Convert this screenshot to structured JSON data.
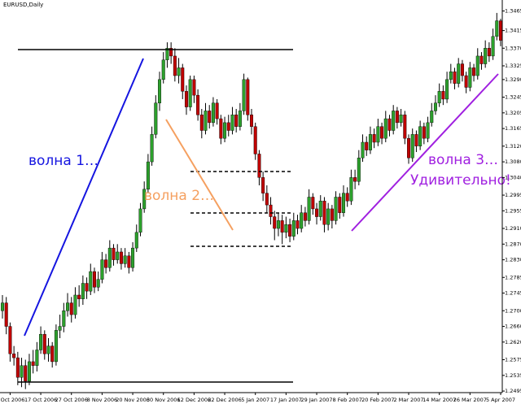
{
  "chart_data": {
    "type": "candlestick",
    "title": "EURUSD,Daily",
    "annotations": [
      "волна 1…",
      "волна 2…",
      "волна 3…",
      "Удивительно!"
    ],
    "up_color": "#2ca02c",
    "down_color": "#c00000",
    "ylim": [
      1.2491,
      1.3493
    ],
    "yticks": [
      1.3465,
      1.3415,
      {
        "value": 1.337,
        "label": "1.3370"
      },
      1.3325,
      {
        "value": 1.329,
        "label": "1.3290"
      },
      1.3245,
      1.3205,
      1.3165,
      {
        "value": 1.312,
        "label": "1.3120"
      },
      {
        "value": 1.308,
        "label": "1.3080"
      },
      {
        "value": 1.304,
        "label": "1.3040"
      },
      1.2995,
      1.2955,
      {
        "value": 1.291,
        "label": "1.2910"
      },
      {
        "value": 1.287,
        "label": "1.2870"
      },
      {
        "value": 1.283,
        "label": "1.2830"
      },
      1.2785,
      1.2745,
      {
        "value": 1.27,
        "label": "1.2700"
      },
      {
        "value": 1.266,
        "label": "1.2660"
      },
      {
        "value": 1.262,
        "label": "1.2620"
      },
      1.2575,
      1.2535,
      1.2495
    ],
    "categories": [
      null,
      null,
      "5 Oct 2006",
      null,
      null,
      null,
      null,
      null,
      null,
      null,
      "17 Oct 2006",
      null,
      null,
      null,
      null,
      null,
      null,
      null,
      "27 Oct 2006",
      null,
      null,
      null,
      null,
      null,
      null,
      null,
      "8 Nov 2006",
      null,
      null,
      null,
      null,
      null,
      null,
      null,
      "20 Nov 2006",
      null,
      null,
      null,
      null,
      null,
      null,
      null,
      "30 Nov 2006",
      null,
      null,
      null,
      null,
      null,
      null,
      null,
      "12 Dec 2006",
      null,
      null,
      null,
      null,
      null,
      null,
      null,
      "22 Dec 2006",
      null,
      null,
      null,
      null,
      null,
      null,
      null,
      "5 Jan 2007",
      null,
      null,
      null,
      null,
      null,
      null,
      null,
      "17 Jan 2007",
      null,
      null,
      null,
      null,
      null,
      null,
      null,
      "29 Jan 2007",
      null,
      null,
      null,
      null,
      null,
      null,
      null,
      "8 Feb 2007",
      null,
      null,
      null,
      null,
      null,
      null,
      null,
      "20 Feb 2007",
      null,
      null,
      null,
      null,
      null,
      null,
      null,
      "2 Mar 2007",
      null,
      null,
      null,
      null,
      null,
      null,
      null,
      "14 Mar 2007",
      null,
      null,
      null,
      null,
      null,
      null,
      null,
      "26 Mar 2007",
      null,
      null,
      null,
      null,
      null,
      null,
      null,
      "5 Apr 2007"
    ],
    "ohlc": [
      [
        1.27,
        1.274,
        1.268,
        1.272
      ],
      [
        1.272,
        1.2735,
        1.264,
        1.266
      ],
      [
        1.266,
        1.267,
        1.257,
        1.259
      ],
      [
        1.259,
        1.261,
        1.256,
        1.258
      ],
      [
        1.258,
        1.2595,
        1.251,
        1.253
      ],
      [
        1.253,
        1.258,
        1.2505,
        1.256
      ],
      [
        1.256,
        1.2575,
        1.25,
        1.252
      ],
      [
        1.252,
        1.259,
        1.251,
        1.257
      ],
      [
        1.257,
        1.26,
        1.254,
        1.256
      ],
      [
        1.256,
        1.262,
        1.2545,
        1.26
      ],
      [
        1.26,
        1.266,
        1.259,
        1.264
      ],
      [
        1.264,
        1.265,
        1.2575,
        1.259
      ],
      [
        1.259,
        1.263,
        1.257,
        1.261
      ],
      [
        1.261,
        1.262,
        1.2555,
        1.257
      ],
      [
        1.257,
        1.2665,
        1.256,
        1.265
      ],
      [
        1.265,
        1.269,
        1.263,
        1.266
      ],
      [
        1.266,
        1.272,
        1.2645,
        1.27
      ],
      [
        1.27,
        1.2745,
        1.2685,
        1.272
      ],
      [
        1.272,
        1.2735,
        1.267,
        1.269
      ],
      [
        1.269,
        1.276,
        1.268,
        1.274
      ],
      [
        1.274,
        1.2765,
        1.271,
        1.273
      ],
      [
        1.273,
        1.279,
        1.2715,
        1.277
      ],
      [
        1.277,
        1.2785,
        1.273,
        1.275
      ],
      [
        1.275,
        1.282,
        1.274,
        1.28
      ],
      [
        1.28,
        1.281,
        1.2745,
        1.276
      ],
      [
        1.276,
        1.28,
        1.275,
        1.278
      ],
      [
        1.278,
        1.285,
        1.277,
        1.283
      ],
      [
        1.283,
        1.2845,
        1.2795,
        1.281
      ],
      [
        1.281,
        1.288,
        1.28,
        1.286
      ],
      [
        1.286,
        1.287,
        1.2815,
        1.283
      ],
      [
        1.283,
        1.287,
        1.282,
        1.285
      ],
      [
        1.285,
        1.286,
        1.2805,
        1.282
      ],
      [
        1.282,
        1.286,
        1.281,
        1.284
      ],
      [
        1.284,
        1.285,
        1.2795,
        1.281
      ],
      [
        1.281,
        1.2875,
        1.28,
        1.286
      ],
      [
        1.286,
        1.292,
        1.285,
        1.29
      ],
      [
        1.29,
        1.2975,
        1.289,
        1.296
      ],
      [
        1.296,
        1.303,
        1.295,
        1.301
      ],
      [
        1.301,
        1.31,
        1.3,
        1.308
      ],
      [
        1.308,
        1.317,
        1.307,
        1.315
      ],
      [
        1.315,
        1.325,
        1.314,
        1.323
      ],
      [
        1.323,
        1.331,
        1.321,
        1.329
      ],
      [
        1.329,
        1.336,
        1.328,
        1.334
      ],
      [
        1.334,
        1.3385,
        1.332,
        1.337
      ],
      [
        1.337,
        1.3385,
        1.333,
        1.335
      ],
      [
        1.335,
        1.337,
        1.3285,
        1.33
      ],
      [
        1.33,
        1.3345,
        1.328,
        1.332
      ],
      [
        1.332,
        1.333,
        1.324,
        1.326
      ],
      [
        1.326,
        1.3275,
        1.32,
        1.322
      ],
      [
        1.322,
        1.33,
        1.321,
        1.329
      ],
      [
        1.329,
        1.33,
        1.323,
        1.325
      ],
      [
        1.325,
        1.3265,
        1.3185,
        1.32
      ],
      [
        1.32,
        1.3215,
        1.314,
        1.316
      ],
      [
        1.316,
        1.323,
        1.315,
        1.321
      ],
      [
        1.321,
        1.3225,
        1.3165,
        1.318
      ],
      [
        1.318,
        1.3245,
        1.317,
        1.323
      ],
      [
        1.323,
        1.324,
        1.3175,
        1.319
      ],
      [
        1.319,
        1.32,
        1.3125,
        1.314
      ],
      [
        1.314,
        1.3195,
        1.313,
        1.318
      ],
      [
        1.318,
        1.32,
        1.3145,
        1.316
      ],
      [
        1.316,
        1.322,
        1.315,
        1.32
      ],
      [
        1.32,
        1.3215,
        1.3155,
        1.317
      ],
      [
        1.317,
        1.323,
        1.316,
        1.321
      ],
      [
        1.321,
        1.3305,
        1.32,
        1.329
      ],
      [
        1.329,
        1.3295,
        1.3185,
        1.32
      ],
      [
        1.32,
        1.3215,
        1.315,
        1.317
      ],
      [
        1.317,
        1.318,
        1.3085,
        1.31
      ],
      [
        1.31,
        1.311,
        1.302,
        1.304
      ],
      [
        1.304,
        1.3055,
        1.298,
        1.3
      ],
      [
        1.3,
        1.302,
        1.295,
        1.297
      ],
      [
        1.297,
        1.299,
        1.292,
        1.294
      ],
      [
        1.294,
        1.2955,
        1.288,
        1.291
      ],
      [
        1.291,
        1.295,
        1.289,
        1.293
      ],
      [
        1.293,
        1.2945,
        1.287,
        1.29
      ],
      [
        1.29,
        1.294,
        1.2885,
        1.292
      ],
      [
        1.292,
        1.2935,
        1.2875,
        1.289
      ],
      [
        1.289,
        1.295,
        1.288,
        1.293
      ],
      [
        1.293,
        1.2945,
        1.2895,
        1.291
      ],
      [
        1.291,
        1.297,
        1.29,
        1.295
      ],
      [
        1.295,
        1.2965,
        1.2915,
        1.293
      ],
      [
        1.293,
        1.301,
        1.292,
        1.299
      ],
      [
        1.299,
        1.3,
        1.2945,
        1.296
      ],
      [
        1.296,
        1.2975,
        1.292,
        1.294
      ],
      [
        1.294,
        1.2995,
        1.293,
        1.298
      ],
      [
        1.298,
        1.299,
        1.29,
        1.292
      ],
      [
        1.292,
        1.2975,
        1.2905,
        1.296
      ],
      [
        1.296,
        1.297,
        1.291,
        1.293
      ],
      [
        1.293,
        1.3005,
        1.292,
        1.299
      ],
      [
        1.299,
        1.3,
        1.2935,
        1.295
      ],
      [
        1.295,
        1.302,
        1.294,
        1.3
      ],
      [
        1.3,
        1.3015,
        1.2965,
        1.298
      ],
      [
        1.298,
        1.306,
        1.297,
        1.304
      ],
      [
        1.304,
        1.306,
        1.301,
        1.303
      ],
      [
        1.303,
        1.311,
        1.302,
        1.309
      ],
      [
        1.309,
        1.315,
        1.308,
        1.313
      ],
      [
        1.313,
        1.3145,
        1.3095,
        1.311
      ],
      [
        1.311,
        1.317,
        1.31,
        1.315
      ],
      [
        1.315,
        1.3165,
        1.3115,
        1.313
      ],
      [
        1.313,
        1.319,
        1.312,
        1.317
      ],
      [
        1.317,
        1.318,
        1.3125,
        1.314
      ],
      [
        1.314,
        1.321,
        1.313,
        1.319
      ],
      [
        1.319,
        1.32,
        1.3145,
        1.316
      ],
      [
        1.316,
        1.3225,
        1.315,
        1.321
      ],
      [
        1.321,
        1.322,
        1.3165,
        1.318
      ],
      [
        1.318,
        1.3215,
        1.317,
        1.32
      ],
      [
        1.32,
        1.321,
        1.3125,
        1.314
      ],
      [
        1.314,
        1.315,
        1.3075,
        1.309
      ],
      [
        1.309,
        1.3165,
        1.308,
        1.315
      ],
      [
        1.315,
        1.316,
        1.3105,
        1.312
      ],
      [
        1.312,
        1.3185,
        1.311,
        1.317
      ],
      [
        1.317,
        1.318,
        1.3125,
        1.314
      ],
      [
        1.314,
        1.3195,
        1.313,
        1.318
      ],
      [
        1.318,
        1.323,
        1.317,
        1.321
      ],
      [
        1.321,
        1.325,
        1.32,
        1.323
      ],
      [
        1.323,
        1.328,
        1.322,
        1.326
      ],
      [
        1.326,
        1.3275,
        1.3225,
        1.324
      ],
      [
        1.324,
        1.331,
        1.323,
        1.329
      ],
      [
        1.329,
        1.333,
        1.328,
        1.331
      ],
      [
        1.331,
        1.332,
        1.3265,
        1.328
      ],
      [
        1.328,
        1.3345,
        1.327,
        1.333
      ],
      [
        1.333,
        1.334,
        1.3285,
        1.33
      ],
      [
        1.33,
        1.331,
        1.3255,
        1.327
      ],
      [
        1.327,
        1.3335,
        1.326,
        1.332
      ],
      [
        1.332,
        1.333,
        1.3285,
        1.33
      ],
      [
        1.33,
        1.337,
        1.329,
        1.335
      ],
      [
        1.335,
        1.336,
        1.3315,
        1.333
      ],
      [
        1.333,
        1.339,
        1.332,
        1.337
      ],
      [
        1.337,
        1.3385,
        1.3335,
        1.335
      ],
      [
        1.335,
        1.342,
        1.334,
        1.34
      ],
      [
        1.34,
        1.346,
        1.339,
        1.344
      ],
      [
        1.344,
        1.3445,
        1.3375,
        1.339
      ]
    ]
  }
}
